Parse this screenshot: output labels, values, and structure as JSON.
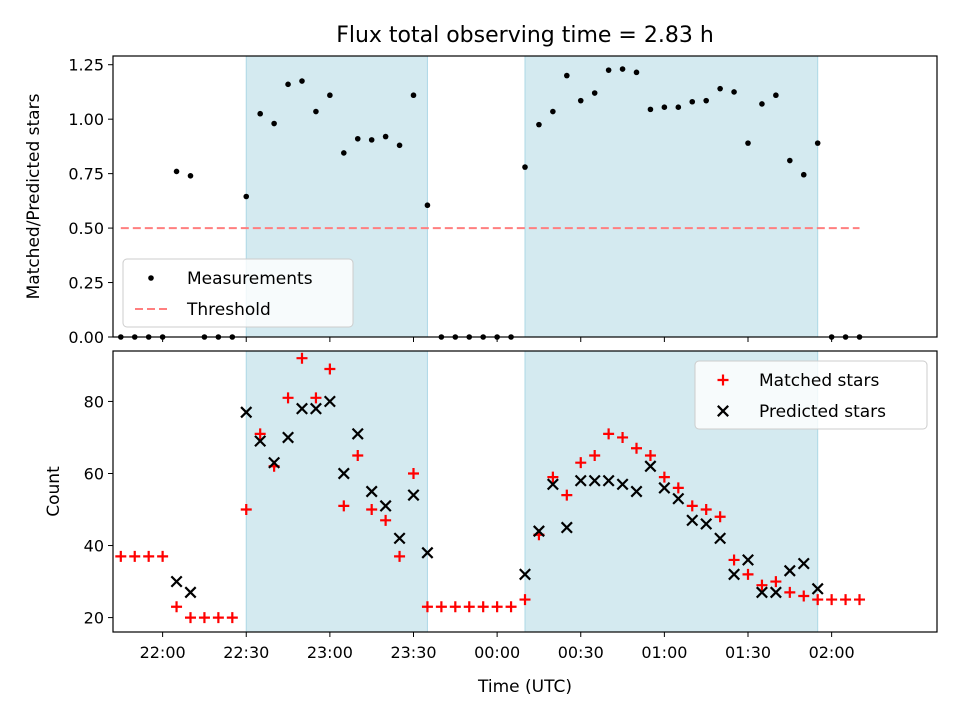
{
  "chart_data": {
    "type": "scatter",
    "title": "Flux total observing time = 2.83 h",
    "xlabel": "Time (UTC)",
    "x_unit": "time of day (UTC), continuing past midnight",
    "x_ticks": [
      "22:00",
      "22:30",
      "23:00",
      "23:30",
      "00:00",
      "00:30",
      "01:00",
      "01:30",
      "02:00"
    ],
    "shaded_spans": [
      {
        "start": "22:30",
        "end": "23:35"
      },
      {
        "start": "00:10",
        "end": "01:55"
      }
    ],
    "shade_color": "#d4eaf0",
    "panels": [
      {
        "ylabel": "Matched/Predicted stars",
        "ylim": [
          0,
          1.29
        ],
        "yticks": [
          "0.00",
          "0.25",
          "0.50",
          "0.75",
          "1.00",
          "1.25"
        ],
        "legend": {
          "position": "lower-left",
          "entries": [
            "Measurements",
            "Threshold"
          ]
        },
        "series": [
          {
            "name": "Measurements",
            "marker": "dot",
            "color": "#000000",
            "x": [
              "21:45",
              "21:50",
              "21:55",
              "22:00",
              "22:05",
              "22:10",
              "22:15",
              "22:20",
              "22:25",
              "22:30",
              "22:35",
              "22:40",
              "22:45",
              "22:50",
              "22:55",
              "23:00",
              "23:05",
              "23:10",
              "23:15",
              "23:20",
              "23:25",
              "23:30",
              "23:35",
              "23:40",
              "23:45",
              "23:50",
              "23:55",
              "00:00",
              "00:05",
              "00:10",
              "00:15",
              "00:20",
              "00:25",
              "00:30",
              "00:35",
              "00:40",
              "00:45",
              "00:50",
              "00:55",
              "01:00",
              "01:05",
              "01:10",
              "01:15",
              "01:20",
              "01:25",
              "01:30",
              "01:35",
              "01:40",
              "01:45",
              "01:50",
              "01:55",
              "02:00",
              "02:05",
              "02:10"
            ],
            "y": [
              0.0,
              0.0,
              0.0,
              0.0,
              0.76,
              0.74,
              0.0,
              0.0,
              0.0,
              0.645,
              1.025,
              0.98,
              1.16,
              1.175,
              1.035,
              1.11,
              0.845,
              0.91,
              0.905,
              0.92,
              0.88,
              1.11,
              0.605,
              0.0,
              0.0,
              0.0,
              0.0,
              0.0,
              0.0,
              0.78,
              0.975,
              1.035,
              1.2,
              1.085,
              1.12,
              1.225,
              1.23,
              1.215,
              1.045,
              1.055,
              1.055,
              1.08,
              1.085,
              1.14,
              1.125,
              0.89,
              1.07,
              1.11,
              0.81,
              0.745,
              0.89,
              0.0,
              0.0,
              0.0
            ]
          },
          {
            "name": "Threshold",
            "type": "line",
            "style": "dashed",
            "color": "#ff7f7f",
            "x": [
              "21:45",
              "02:10"
            ],
            "y": [
              0.5,
              0.5
            ]
          }
        ]
      },
      {
        "ylabel": "Count",
        "ylim": [
          16,
          94
        ],
        "yticks": [
          "20",
          "40",
          "60",
          "80"
        ],
        "legend": {
          "position": "upper-right",
          "entries": [
            "Matched stars",
            "Predicted stars"
          ]
        },
        "series": [
          {
            "name": "Matched stars",
            "marker": "plus",
            "color": "#ff0000",
            "x": [
              "21:45",
              "21:50",
              "21:55",
              "22:00",
              "22:05",
              "22:10",
              "22:15",
              "22:20",
              "22:25",
              "22:30",
              "22:35",
              "22:40",
              "22:45",
              "22:50",
              "22:55",
              "23:00",
              "23:05",
              "23:10",
              "23:15",
              "23:20",
              "23:25",
              "23:30",
              "23:35",
              "23:40",
              "23:45",
              "23:50",
              "23:55",
              "00:00",
              "00:05",
              "00:10",
              "00:15",
              "00:20",
              "00:25",
              "00:30",
              "00:35",
              "00:40",
              "00:45",
              "00:50",
              "00:55",
              "01:00",
              "01:05",
              "01:10",
              "01:15",
              "01:20",
              "01:25",
              "01:30",
              "01:35",
              "01:40",
              "01:45",
              "01:50",
              "01:55",
              "02:00",
              "02:05",
              "02:10"
            ],
            "y": [
              37,
              37,
              37,
              37,
              23,
              20,
              20,
              20,
              20,
              50,
              71,
              62,
              81,
              92,
              81,
              89,
              51,
              65,
              50,
              47,
              37,
              60,
              23,
              23,
              23,
              23,
              23,
              23,
              23,
              25,
              43,
              59,
              54,
              63,
              65,
              71,
              70,
              67,
              65,
              59,
              56,
              51,
              50,
              48,
              36,
              32,
              29,
              30,
              27,
              26,
              25,
              25,
              25,
              25
            ]
          },
          {
            "name": "Predicted stars",
            "marker": "x",
            "color": "#000000",
            "x": [
              "22:05",
              "22:10",
              "22:30",
              "22:35",
              "22:40",
              "22:45",
              "22:50",
              "22:55",
              "23:00",
              "23:05",
              "23:10",
              "23:15",
              "23:20",
              "23:25",
              "23:30",
              "23:35",
              "00:10",
              "00:15",
              "00:20",
              "00:25",
              "00:30",
              "00:35",
              "00:40",
              "00:45",
              "00:50",
              "00:55",
              "01:00",
              "01:05",
              "01:10",
              "01:15",
              "01:20",
              "01:25",
              "01:30",
              "01:35",
              "01:40",
              "01:45",
              "01:50",
              "01:55"
            ],
            "y": [
              30,
              27,
              77,
              69,
              63,
              70,
              78,
              78,
              80,
              60,
              71,
              55,
              51,
              42,
              54,
              38,
              32,
              44,
              57,
              45,
              58,
              58,
              58,
              57,
              55,
              62,
              56,
              53,
              47,
              46,
              42,
              32,
              36,
              27,
              27,
              33,
              35,
              28
            ]
          }
        ]
      }
    ]
  }
}
